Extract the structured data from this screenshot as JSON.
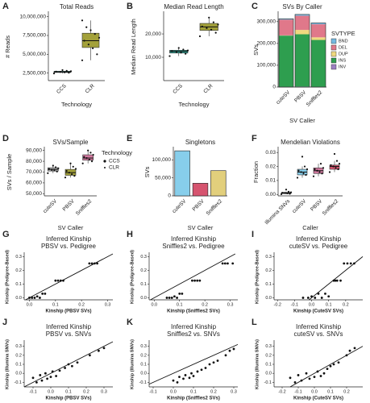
{
  "chart_data": [
    {
      "type": "box",
      "panel": "A",
      "title": "Total Reads",
      "xlabel": "Technology",
      "ylabel": "# Reads",
      "categories": [
        "CCS",
        "CLR"
      ],
      "ylim": [
        1500000,
        10500000
      ],
      "yticks": [
        {
          "value": 2500000,
          "label": "2,500,000"
        },
        {
          "value": 5000000,
          "label": "5,000,000"
        },
        {
          "value": 7500000,
          "label": "7,500,000"
        },
        {
          "value": 10000000,
          "label": "10,000,000"
        }
      ],
      "boxes": [
        {
          "whislo": 2450000,
          "q1": 2580000,
          "med": 2650000,
          "q3": 2750000,
          "whishi": 2900000,
          "color": "#2a9d8f"
        },
        {
          "whislo": 4200000,
          "q1": 5900000,
          "med": 6800000,
          "q3": 7800000,
          "whishi": 9500000,
          "color": "#a3a13a"
        }
      ],
      "points": [
        [
          2450000,
          2550000,
          2600000,
          2650000,
          2700000,
          2750000,
          2800000,
          2900000
        ],
        [
          4200000,
          5000000,
          5800000,
          6300000,
          6800000,
          7200000,
          7700000,
          8200000,
          8600000,
          9500000
        ]
      ]
    },
    {
      "type": "box",
      "panel": "B",
      "title": "Median Read Length",
      "xlabel": "Technology",
      "ylabel": "Median Read Length",
      "categories": [
        "CCS",
        "CLR"
      ],
      "ylim": [
        0,
        29000
      ],
      "yticks": [
        {
          "value": 10000,
          "label": "10,000"
        },
        {
          "value": 20000,
          "label": "20,000"
        }
      ],
      "boxes": [
        {
          "whislo": 10500,
          "q1": 11800,
          "med": 12500,
          "q3": 13000,
          "whishi": 14000,
          "color": "#2a9d8f"
        },
        {
          "whislo": 19000,
          "q1": 21500,
          "med": 23000,
          "q3": 24500,
          "whishi": 27000,
          "color": "#a3a13a"
        }
      ],
      "points": [
        [
          10500,
          11500,
          12000,
          12300,
          12600,
          12900,
          13300,
          14000
        ],
        [
          19000,
          20500,
          21800,
          22500,
          23200,
          24000,
          25000,
          27000
        ]
      ]
    },
    {
      "type": "stacked_bar",
      "panel": "C",
      "title": "SVs By Caller",
      "xlabel": "SV Caller",
      "ylabel": "SVs",
      "legend_title": "SVTYPE",
      "categories": [
        "cuteSV",
        "PBSV",
        "Sniffles2"
      ],
      "ylim": [
        0,
        340000
      ],
      "yticks": [
        0,
        {
          "value": 100000,
          "label": "100,000"
        },
        {
          "value": 200000,
          "label": "200,000"
        },
        {
          "value": 300000,
          "label": "300,000"
        }
      ],
      "series": [
        {
          "name": "BND",
          "color": "#74b9e0",
          "values": [
            4000,
            6000,
            6000
          ]
        },
        {
          "name": "DEL",
          "color": "#e0788a",
          "values": [
            72000,
            65000,
            60000
          ]
        },
        {
          "name": "DUP",
          "color": "#efd97f",
          "values": [
            1000,
            20000,
            12000
          ]
        },
        {
          "name": "INS",
          "color": "#2e9e4f",
          "values": [
            235000,
            240000,
            215000
          ]
        },
        {
          "name": "INV",
          "color": "#9d7fc2",
          "values": [
            1000,
            2000,
            1000
          ]
        }
      ]
    },
    {
      "type": "box",
      "panel": "D",
      "title": "SVs/Sample",
      "xlabel": "SV Caller",
      "ylabel": "SVs / Sample",
      "legend_title": "Technology",
      "legend": [
        "CCS",
        "CLR"
      ],
      "categories": [
        "cuteSV",
        "PBSV",
        "Sniffles2"
      ],
      "ylim": [
        48000,
        92000
      ],
      "yticks": [
        {
          "value": 50000,
          "label": "50,000"
        },
        {
          "value": 60000,
          "label": "60,000"
        },
        {
          "value": 70000,
          "label": "70,000"
        },
        {
          "value": 80000,
          "label": "80,000"
        },
        {
          "value": 90000,
          "label": "90,000"
        }
      ],
      "boxes": [
        {
          "whislo": 69000,
          "q1": 71000,
          "med": 72500,
          "q3": 74000,
          "whishi": 76000,
          "color": "#b5b5b5"
        },
        {
          "whislo": 65000,
          "q1": 67000,
          "med": 69500,
          "q3": 72500,
          "whishi": 78000,
          "color": "#a3a13a"
        },
        {
          "whislo": 78000,
          "q1": 81000,
          "med": 83000,
          "q3": 86000,
          "whishi": 90000,
          "color": "#d27aa0"
        }
      ],
      "points": [
        [
          69000,
          70500,
          71500,
          72000,
          72800,
          73500,
          74500,
          76000
        ],
        [
          65000,
          66500,
          68000,
          69500,
          71000,
          73000,
          75000,
          78000
        ],
        [
          78000,
          80000,
          81500,
          83000,
          84000,
          86000,
          88000,
          90000
        ]
      ]
    },
    {
      "type": "bar",
      "panel": "E",
      "title": "Singletons",
      "xlabel": "SV Caller",
      "ylabel": "SVs",
      "categories": [
        "cuteSV",
        "PBSV",
        "Sniffles2"
      ],
      "values": [
        125000,
        35000,
        70000
      ],
      "colors": [
        "#87ceeb",
        "#d6546f",
        "#e2cf7c"
      ],
      "ylim": [
        0,
        132000
      ],
      "yticks": [
        0,
        {
          "value": 50000,
          "label": "50,000"
        },
        {
          "value": 100000,
          "label": "100,000"
        }
      ]
    },
    {
      "type": "box",
      "panel": "F",
      "title": "Mendelian Violations",
      "xlabel": "Caller",
      "ylabel": "Fraction",
      "categories": [
        "Illumina SNVs",
        "cuteSV",
        "PBSV",
        "Sniffles2"
      ],
      "ylim": [
        -0.001,
        0.033
      ],
      "yticks": [
        {
          "value": 0,
          "label": "0.00"
        },
        {
          "value": 0.01,
          "label": "0.01"
        },
        {
          "value": 0.02,
          "label": "0.02"
        },
        {
          "value": 0.03,
          "label": "0.03"
        }
      ],
      "boxes": [
        {
          "whislo": 0.0002,
          "q1": 0.0006,
          "med": 0.001,
          "q3": 0.0015,
          "whishi": 0.002,
          "color": "#b5b5b5"
        },
        {
          "whislo": 0.012,
          "q1": 0.014,
          "med": 0.016,
          "q3": 0.018,
          "whishi": 0.02,
          "color": "#87ceeb"
        },
        {
          "whislo": 0.013,
          "q1": 0.015,
          "med": 0.017,
          "q3": 0.019,
          "whishi": 0.022,
          "color": "#d27aa0"
        },
        {
          "whislo": 0.016,
          "q1": 0.018,
          "med": 0.02,
          "q3": 0.021,
          "whishi": 0.024,
          "color": "#d6546f"
        }
      ],
      "points": [
        [
          0.0002,
          0.0005,
          0.0008,
          0.001,
          0.0012,
          0.0015,
          0.002,
          0.0035
        ],
        [
          0.012,
          0.014,
          0.015,
          0.016,
          0.017,
          0.018,
          0.02,
          0.027
        ],
        [
          0.013,
          0.015,
          0.016,
          0.017,
          0.018,
          0.019,
          0.022
        ],
        [
          0.016,
          0.018,
          0.019,
          0.02,
          0.021,
          0.022,
          0.024,
          0.029
        ]
      ]
    },
    {
      "type": "scatter",
      "panel": "G",
      "title": "Inferred Kinship",
      "subtitle": "PBSV vs. Pedigree",
      "xlabel": "Kinship (PBSV SVs)",
      "ylabel": "Kinship (Pedigree-Based)",
      "xlim": [
        -0.02,
        0.32
      ],
      "ylim": [
        -0.015,
        0.32
      ],
      "xticks": [
        {
          "value": 0,
          "label": "0.0"
        },
        0.1,
        0.2,
        0.3
      ],
      "yticks": [
        {
          "value": 0,
          "label": "0.0"
        },
        0.1,
        0.2,
        0.3
      ],
      "x": [
        0.0,
        0.01,
        0.02,
        0.03,
        0.04,
        0.05,
        0.06,
        0.1,
        0.11,
        0.12,
        0.13,
        0.23,
        0.24,
        0.25,
        0.26
      ],
      "values": [
        0,
        0,
        0,
        0.01,
        0,
        0.03,
        0.03,
        0.125,
        0.125,
        0.125,
        0.125,
        0.25,
        0.25,
        0.25,
        0.25
      ]
    },
    {
      "type": "scatter",
      "panel": "H",
      "title": "Inferred Kinship",
      "subtitle": "Sniffles2 vs. Pedigree",
      "xlabel": "Kinship (Sniffles2 SVs)",
      "ylabel": "Kinship (Pedigree-Based)",
      "xlim": [
        -0.02,
        0.33
      ],
      "ylim": [
        -0.015,
        0.32
      ],
      "xticks": [
        {
          "value": 0,
          "label": "0.0"
        },
        0.1,
        0.2,
        0.3
      ],
      "yticks": [
        {
          "value": 0,
          "label": "0.0"
        },
        0.1,
        0.2,
        0.3
      ],
      "x": [
        0.05,
        0.06,
        0.07,
        0.08,
        0.09,
        0.1,
        0.11,
        0.15,
        0.16,
        0.17,
        0.18,
        0.27,
        0.28,
        0.29,
        0.31
      ],
      "values": [
        0,
        0,
        0,
        0.01,
        0,
        0.03,
        0.03,
        0.125,
        0.125,
        0.125,
        0.125,
        0.25,
        0.25,
        0.25,
        0.25
      ]
    },
    {
      "type": "scatter",
      "panel": "I",
      "title": "Inferred Kinship",
      "subtitle": "cuteSV vs. Pedigree",
      "xlabel": "Kinship (CuteSV SVs)",
      "ylabel": "Kinship (Pedigree-Based)",
      "xlim": [
        -0.22,
        0.3
      ],
      "ylim": [
        -0.015,
        0.32
      ],
      "xticks": [
        -0.2,
        -0.1,
        {
          "value": 0,
          "label": "0.0"
        },
        0.1,
        0.2
      ],
      "yticks": [
        {
          "value": 0,
          "label": "0.0"
        },
        0.1,
        0.2,
        0.3
      ],
      "x": [
        -0.05,
        -0.02,
        0.0,
        0.02,
        0.04,
        0.06,
        0.08,
        0.1,
        0.13,
        0.14,
        0.15,
        0.17,
        0.19,
        0.21,
        0.23,
        0.25
      ],
      "values": [
        0,
        0,
        0.01,
        0,
        0.03,
        0,
        0.03,
        0.01,
        0.125,
        0.125,
        0.125,
        0.125,
        0.25,
        0.25,
        0.25,
        0.25
      ]
    },
    {
      "type": "scatter",
      "panel": "J",
      "title": "Inferred Kinship",
      "subtitle": "PBSV vs. SNVs",
      "xlabel": "Kinship (PBSV SVs)",
      "ylabel": "Kinship (Illumina SNVs)",
      "xlim": [
        -0.15,
        0.35
      ],
      "ylim": [
        -0.15,
        0.35
      ],
      "xticks": [
        -0.1,
        {
          "value": 0,
          "label": "0.0"
        },
        0.1,
        0.2,
        0.3
      ],
      "yticks": [
        -0.1,
        {
          "value": 0,
          "label": "0.0"
        },
        0.1,
        0.2,
        0.3
      ],
      "x": [
        -0.1,
        -0.08,
        -0.06,
        -0.05,
        -0.03,
        -0.02,
        0.0,
        0.01,
        0.03,
        0.05,
        0.08,
        0.1,
        0.12,
        0.15,
        0.22,
        0.27,
        0.3
      ],
      "values": [
        -0.05,
        -0.1,
        -0.02,
        -0.08,
        0.0,
        -0.06,
        -0.04,
        0.02,
        -0.03,
        0.03,
        0.06,
        0.1,
        0.08,
        0.12,
        0.2,
        0.25,
        0.28
      ]
    },
    {
      "type": "scatter",
      "panel": "K",
      "title": "Inferred Kinship",
      "subtitle": "Sniffles2 vs. SNVs",
      "xlabel": "Kinship (Sniffles2 SVs)",
      "ylabel": "Kinship (Illumina SNVs)",
      "xlim": [
        -0.12,
        0.32
      ],
      "ylim": [
        -0.15,
        0.35
      ],
      "xticks": [
        -0.1,
        {
          "value": 0,
          "label": "0.0"
        },
        0.1,
        0.2,
        0.3
      ],
      "yticks": [
        -0.1,
        {
          "value": 0,
          "label": "0.0"
        },
        0.1,
        0.2,
        0.3
      ],
      "x": [
        0.0,
        0.02,
        0.03,
        0.05,
        0.06,
        0.08,
        0.09,
        0.1,
        0.12,
        0.14,
        0.16,
        0.18,
        0.2,
        0.22,
        0.26,
        0.28,
        0.3
      ],
      "values": [
        -0.08,
        -0.1,
        -0.04,
        -0.06,
        -0.02,
        -0.05,
        0.0,
        -0.03,
        0.02,
        0.04,
        0.06,
        0.1,
        0.12,
        0.14,
        0.2,
        0.25,
        0.27
      ]
    },
    {
      "type": "scatter",
      "panel": "L",
      "title": "Inferred Kinship",
      "subtitle": "cuteSV vs. SNVs",
      "xlabel": "Kinship (CuteSV SVs)",
      "ylabel": "Kinship (Illumina SNVs)",
      "xlim": [
        -0.25,
        0.3
      ],
      "ylim": [
        -0.15,
        0.35
      ],
      "xticks": [
        -0.2,
        -0.1,
        {
          "value": 0,
          "label": "0.0"
        },
        0.1,
        0.2
      ],
      "yticks": [
        -0.1,
        {
          "value": 0,
          "label": "0.0"
        },
        0.1,
        0.2,
        0.3
      ],
      "x": [
        -0.15,
        -0.12,
        -0.1,
        -0.08,
        -0.05,
        -0.03,
        0.0,
        0.02,
        0.04,
        0.06,
        0.08,
        0.1,
        0.12,
        0.15,
        0.2,
        0.22,
        0.25
      ],
      "values": [
        -0.05,
        -0.1,
        -0.02,
        -0.08,
        0.0,
        -0.06,
        -0.04,
        0.02,
        -0.03,
        0.0,
        0.05,
        0.08,
        0.1,
        0.12,
        0.2,
        0.25,
        0.28
      ]
    }
  ]
}
